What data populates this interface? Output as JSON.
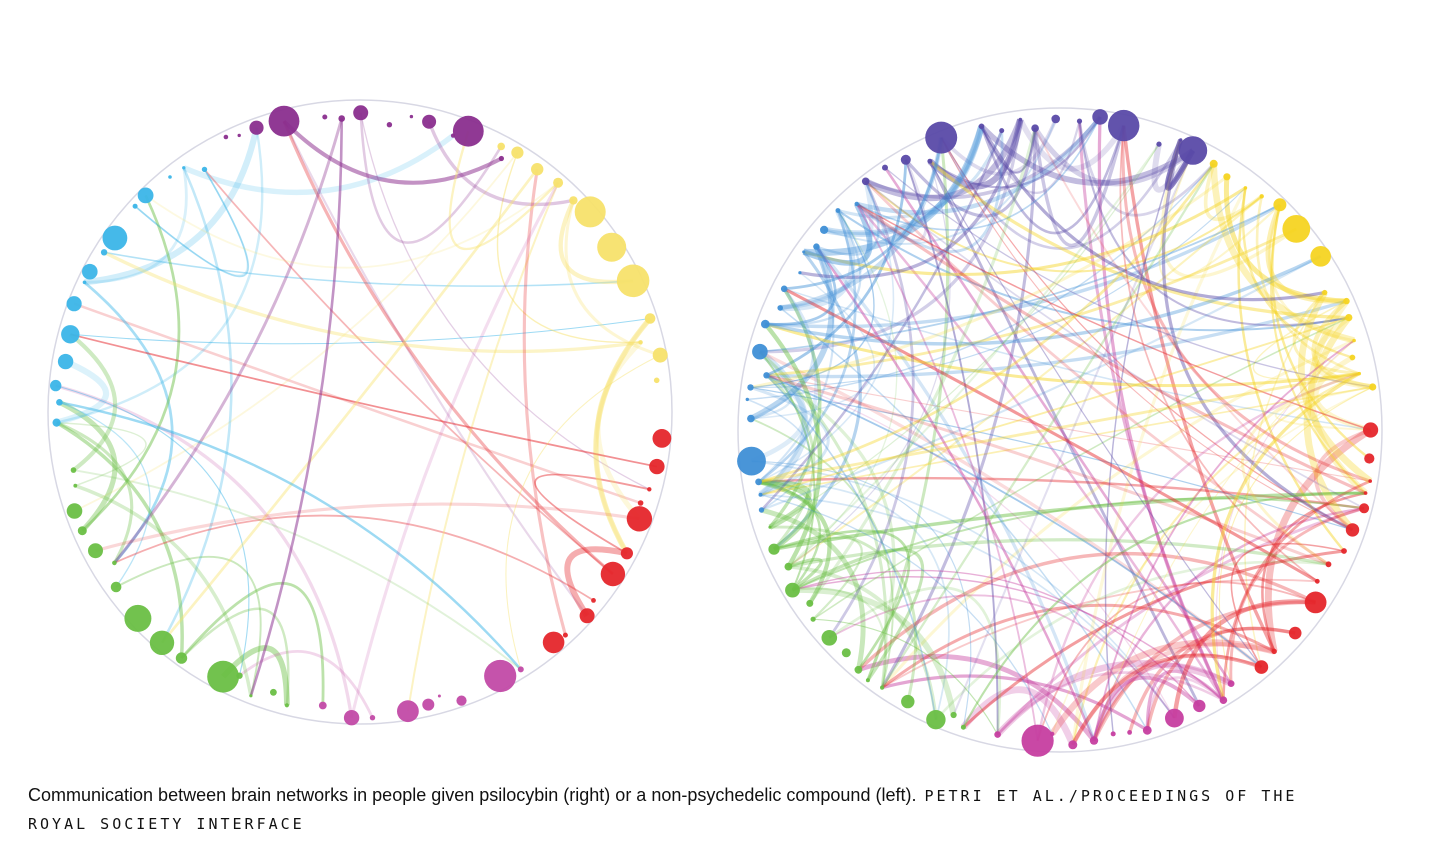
{
  "figure": {
    "caption": "Communication between brain networks in people given psilocybin (right) or a non-psychedelic compound (left).",
    "credit": "PETRI ET AL./PROCEEDINGS OF THE ROYAL SOCIETY INTERFACE"
  }
}
